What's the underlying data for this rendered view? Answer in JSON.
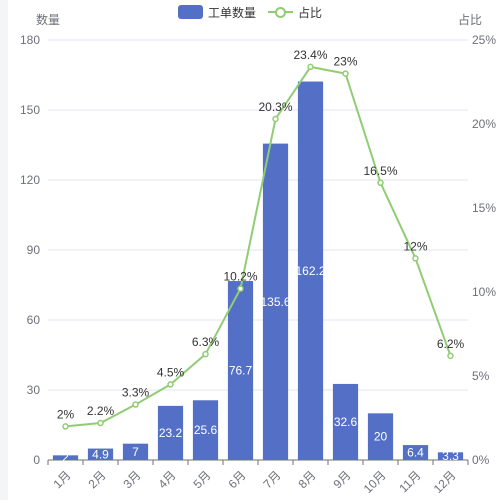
{
  "legend": {
    "bar_label": "工单数量",
    "line_label": "占比"
  },
  "colors": {
    "bar": "#5470c6",
    "line": "#91cc75",
    "axis": "#6e7079",
    "grid": "#e0e6f1",
    "page_edge": "#f3f5f8"
  },
  "chart_data": {
    "type": "bar",
    "categories": [
      "1月",
      "2月",
      "3月",
      "4月",
      "5月",
      "6月",
      "7月",
      "8月",
      "9月",
      "10月",
      "11月",
      "12月"
    ],
    "series": [
      {
        "name": "工单数量",
        "type": "bar",
        "axis": "left",
        "values": [
          2,
          4.9,
          7,
          23.2,
          25.6,
          76.7,
          135.6,
          162.2,
          32.6,
          20,
          6.4,
          3.3
        ],
        "labels": [
          "2",
          "4.9",
          "7",
          "23.2",
          "25.6",
          "76.7",
          "135.6",
          "162.2",
          "32.6",
          "20",
          "6.4",
          "3.3"
        ]
      },
      {
        "name": "占比",
        "type": "line",
        "axis": "right",
        "values": [
          2,
          2.2,
          3.3,
          4.5,
          6.3,
          10.2,
          20.3,
          23.4,
          23,
          16.5,
          12,
          6.2
        ],
        "labels": [
          "2%",
          "2.2%",
          "3.3%",
          "4.5%",
          "6.3%",
          "10.2%",
          "20.3%",
          "23.4%",
          "23%",
          "16.5%",
          "12%",
          "6.2%"
        ]
      }
    ],
    "ylabel": "数量",
    "ylabel_right": "占比",
    "ylim": [
      0,
      180
    ],
    "yticks": [
      0,
      30,
      60,
      90,
      120,
      150,
      180
    ],
    "ylim_right": [
      0,
      25
    ],
    "yticks_right": [
      0,
      5,
      10,
      15,
      20,
      25
    ],
    "yticks_right_labels": [
      "0%",
      "5%",
      "10%",
      "15%",
      "20%",
      "25%"
    ],
    "grid": true,
    "legend_position": "top-center"
  }
}
